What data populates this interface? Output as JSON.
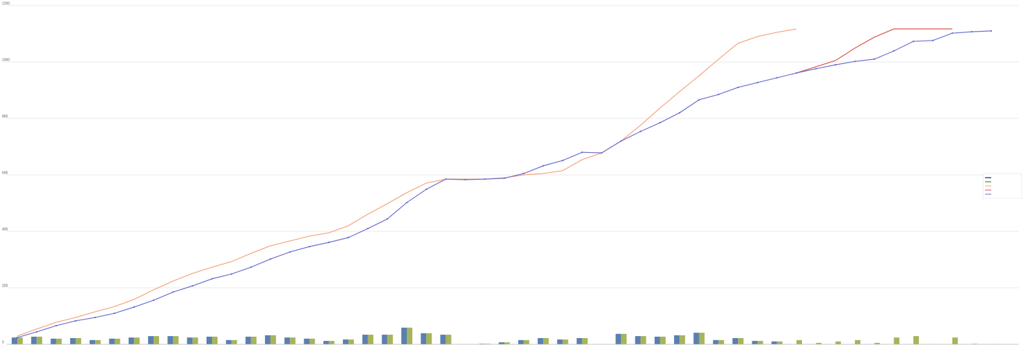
{
  "chart_data": {
    "type": "combo",
    "categories": [
      null,
      null,
      null,
      null,
      null,
      null,
      null,
      null,
      null,
      null,
      null,
      null,
      null,
      null,
      null,
      null,
      null,
      null,
      null,
      null,
      null,
      null,
      null,
      null,
      null,
      null,
      null,
      null,
      null,
      null,
      null,
      null,
      null,
      null,
      null,
      null,
      null,
      null,
      null,
      null,
      null,
      null,
      null,
      null,
      null,
      null,
      null,
      null,
      null,
      null,
      null
    ],
    "ylim": [
      0,
      1200
    ],
    "yticks": [
      0,
      200,
      400,
      600,
      800,
      1000,
      1200
    ],
    "grid": true,
    "series": [
      {
        "kind": "bar",
        "color": "#5b7fae",
        "values": [
          24,
          27,
          20,
          22,
          15,
          20,
          24,
          29,
          29,
          24,
          27,
          15,
          27,
          32,
          24,
          20,
          12,
          17,
          34,
          34,
          59,
          39,
          34,
          0,
          2,
          7,
          15,
          22,
          17,
          22,
          0,
          37,
          29,
          27,
          32,
          41,
          15,
          22,
          12,
          10,
          0,
          0,
          0,
          0,
          0,
          0,
          0,
          0,
          0,
          0,
          0
        ]
      },
      {
        "kind": "bar",
        "color": "#a6b45a",
        "values": [
          24,
          27,
          20,
          22,
          15,
          20,
          24,
          29,
          29,
          24,
          27,
          15,
          27,
          32,
          24,
          20,
          12,
          17,
          34,
          34,
          59,
          39,
          34,
          0,
          2,
          7,
          15,
          22,
          17,
          22,
          0,
          37,
          29,
          27,
          32,
          41,
          15,
          22,
          12,
          10,
          15,
          5,
          10,
          15,
          5,
          24,
          29,
          1,
          24,
          2,
          1
        ]
      },
      {
        "kind": "line",
        "color": "#f4a27a",
        "values": [
          29,
          54,
          78,
          95,
          115,
          134,
          159,
          193,
          224,
          251,
          273,
          293,
          322,
          349,
          366,
          383,
          395,
          420,
          461,
          498,
          537,
          571,
          585,
          585,
          585,
          590,
          600,
          605,
          615,
          654,
          678,
          720,
          776,
          837,
          895,
          951,
          1010,
          1066,
          1090,
          1105,
          1117,
          null,
          null,
          null,
          null,
          null,
          null,
          null,
          null,
          null,
          null
        ]
      },
      {
        "kind": "line",
        "color": "#d9534f",
        "values": [
          null,
          null,
          null,
          null,
          null,
          null,
          null,
          null,
          null,
          null,
          null,
          null,
          null,
          null,
          null,
          null,
          null,
          null,
          null,
          null,
          null,
          null,
          null,
          null,
          null,
          null,
          null,
          null,
          null,
          null,
          null,
          null,
          null,
          null,
          null,
          null,
          null,
          null,
          null,
          null,
          961,
          983,
          1005,
          1049,
          1088,
          1117,
          1117,
          1117,
          1117,
          null,
          null
        ]
      },
      {
        "kind": "line",
        "color": "#6a6ed0",
        "markers": true,
        "values": [
          24,
          44,
          66,
          83,
          95,
          110,
          132,
          156,
          185,
          207,
          232,
          249,
          273,
          302,
          327,
          346,
          361,
          378,
          410,
          444,
          502,
          549,
          585,
          583,
          585,
          588,
          605,
          632,
          651,
          680,
          678,
          720,
          754,
          785,
          820,
          866,
          885,
          910,
          927,
          944,
          961,
          976,
          990,
          1002,
          1010,
          1039,
          1073,
          1076,
          1102,
          1107,
          1110
        ]
      }
    ]
  }
}
